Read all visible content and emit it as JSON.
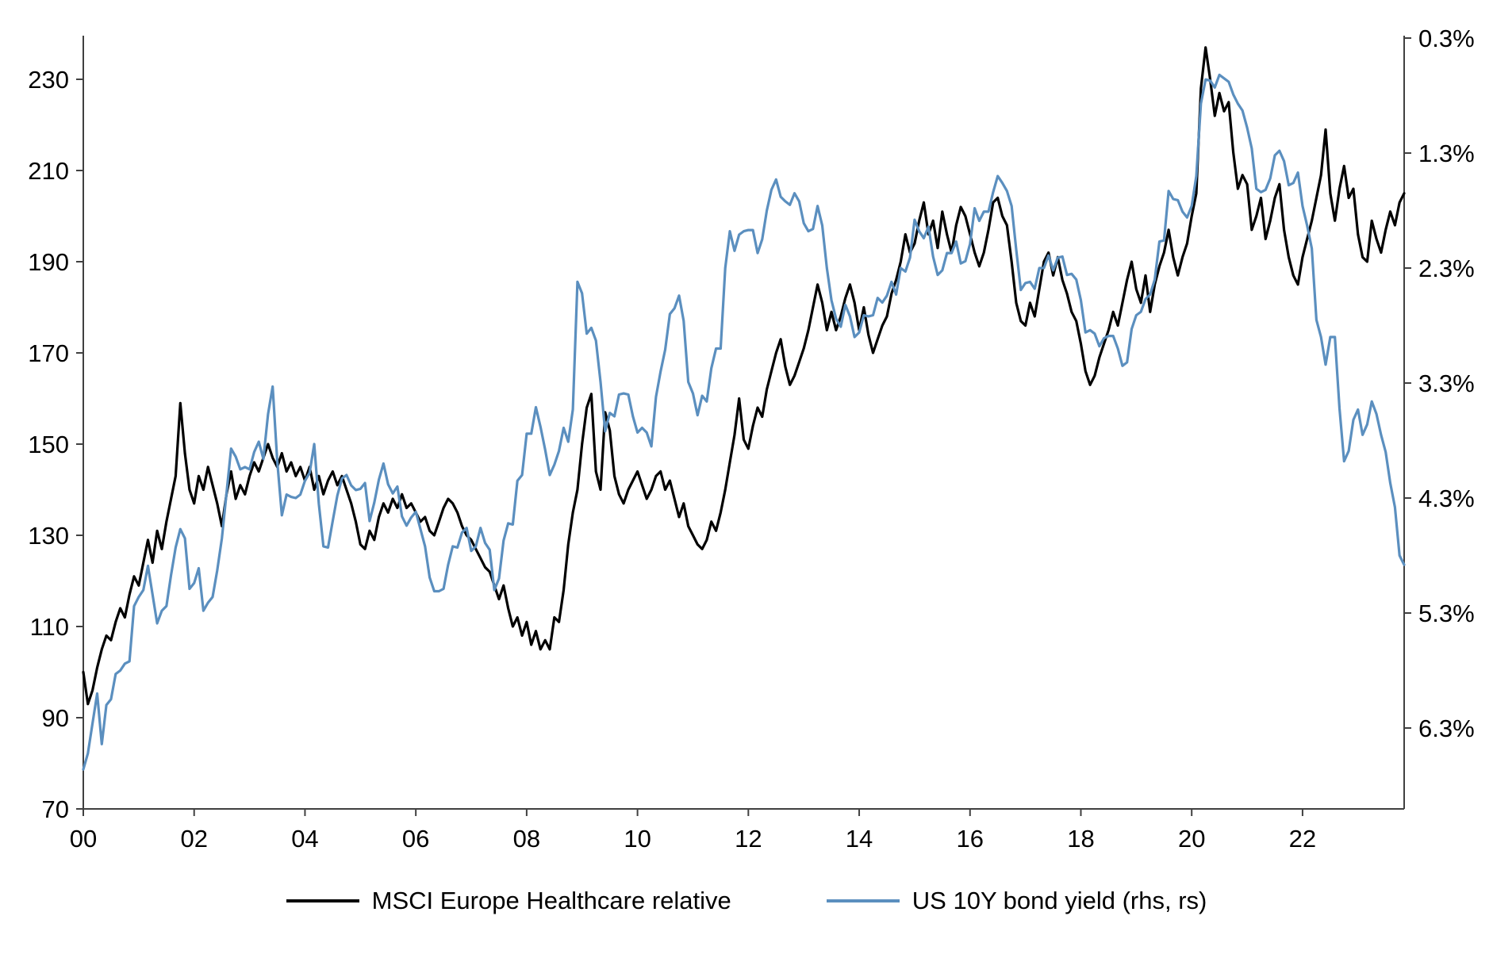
{
  "chart_data": {
    "type": "line",
    "title": "",
    "grid": false,
    "legend_position": "bottom",
    "x_axis": {
      "start_year": 2000,
      "points_per_year": 12,
      "tick_years": [
        2000,
        2002,
        2004,
        2006,
        2008,
        2010,
        2012,
        2014,
        2016,
        2018,
        2020,
        2022
      ],
      "tick_labels": [
        "00",
        "02",
        "04",
        "06",
        "08",
        "10",
        "12",
        "14",
        "16",
        "18",
        "20",
        "22"
      ]
    },
    "left_axis": {
      "min": 70,
      "max": 230,
      "ticks": [
        230,
        210,
        190,
        170,
        150,
        130,
        110,
        90,
        70
      ]
    },
    "right_axis": {
      "reversed": true,
      "ticks": [
        0.3,
        1.3,
        2.3,
        3.3,
        4.3,
        5.3,
        6.3
      ],
      "tick_labels": [
        "0.3%",
        "1.3%",
        "2.3%",
        "3.3%",
        "4.3%",
        "5.3%",
        "6.3%"
      ]
    },
    "series": [
      {
        "name": "MSCI Europe Healthcare relative",
        "axis": "left",
        "color": "#000000",
        "values": [
          100,
          93,
          96,
          101,
          105,
          108,
          107,
          111,
          114,
          112,
          117,
          121,
          119,
          124,
          129,
          124,
          131,
          127,
          133,
          138,
          143,
          159,
          148,
          140,
          137,
          143,
          140,
          145,
          141,
          137,
          132,
          139,
          144,
          138,
          141,
          139,
          143,
          146,
          144,
          147,
          150,
          147,
          145,
          148,
          144,
          146,
          143,
          145,
          142,
          145,
          140,
          143,
          139,
          142,
          144,
          141,
          143,
          140,
          137,
          133,
          128,
          127,
          131,
          129,
          134,
          137,
          135,
          138,
          136,
          139,
          136,
          137,
          135,
          133,
          134,
          131,
          130,
          133,
          136,
          138,
          137,
          135,
          132,
          130,
          129,
          127,
          125,
          123,
          122,
          119,
          116,
          119,
          114,
          110,
          112,
          108,
          111,
          106,
          109,
          105,
          107,
          105,
          112,
          111,
          118,
          128,
          135,
          140,
          150,
          158,
          161,
          144,
          140,
          157,
          153,
          143,
          139,
          137,
          140,
          142,
          144,
          141,
          138,
          140,
          143,
          144,
          140,
          142,
          138,
          134,
          137,
          132,
          130,
          128,
          127,
          129,
          133,
          131,
          135,
          140,
          146,
          152,
          160,
          151,
          149,
          154,
          158,
          156,
          162,
          166,
          170,
          173,
          167,
          163,
          165,
          168,
          171,
          175,
          180,
          185,
          181,
          175,
          179,
          175,
          178,
          182,
          185,
          181,
          175,
          180,
          174,
          170,
          173,
          176,
          178,
          183,
          186,
          190,
          196,
          192,
          194,
          199,
          203,
          196,
          199,
          193,
          201,
          196,
          192,
          198,
          202,
          200,
          196,
          192,
          189,
          192,
          197,
          203,
          204,
          200,
          198,
          190,
          181,
          177,
          176,
          181,
          178,
          184,
          190,
          192,
          187,
          191,
          186,
          183,
          179,
          177,
          172,
          166,
          163,
          165,
          169,
          172,
          175,
          179,
          176,
          181,
          186,
          190,
          184,
          181,
          187,
          179,
          185,
          189,
          192,
          197,
          191,
          187,
          191,
          194,
          200,
          205,
          228,
          237,
          230,
          222,
          227,
          223,
          225,
          214,
          206,
          209,
          207,
          197,
          200,
          204,
          195,
          199,
          204,
          207,
          197,
          191,
          187,
          185,
          191,
          195,
          199,
          204,
          209,
          219,
          205,
          199,
          206,
          211,
          204,
          206,
          196,
          191,
          190,
          199,
          195,
          192,
          197,
          201,
          198,
          203,
          205
        ]
      },
      {
        "name": "US 10Y bond yield (rhs, rs)",
        "axis": "right",
        "color": "#5b8fbf",
        "values": [
          6.66,
          6.52,
          6.26,
          6.0,
          6.44,
          6.1,
          6.05,
          5.83,
          5.8,
          5.74,
          5.72,
          5.24,
          5.16,
          5.1,
          4.89,
          5.14,
          5.39,
          5.28,
          5.24,
          4.97,
          4.73,
          4.57,
          4.65,
          5.09,
          5.04,
          4.91,
          5.28,
          5.21,
          5.16,
          4.93,
          4.65,
          4.26,
          3.87,
          3.94,
          4.05,
          4.03,
          4.05,
          3.9,
          3.81,
          3.96,
          3.57,
          3.33,
          3.98,
          4.45,
          4.27,
          4.29,
          4.3,
          4.27,
          4.15,
          4.08,
          3.83,
          4.35,
          4.72,
          4.73,
          4.5,
          4.28,
          4.13,
          4.1,
          4.19,
          4.23,
          4.22,
          4.17,
          4.5,
          4.34,
          4.14,
          4.0,
          4.18,
          4.26,
          4.2,
          4.46,
          4.54,
          4.47,
          4.42,
          4.57,
          4.72,
          4.99,
          5.11,
          5.11,
          5.09,
          4.88,
          4.72,
          4.73,
          4.6,
          4.56,
          4.76,
          4.72,
          4.56,
          4.69,
          4.75,
          5.1,
          5.0,
          4.67,
          4.52,
          4.53,
          4.15,
          4.1,
          3.74,
          3.74,
          3.51,
          3.68,
          3.88,
          4.1,
          4.01,
          3.89,
          3.69,
          3.81,
          3.53,
          2.42,
          2.52,
          2.87,
          2.82,
          2.93,
          3.29,
          3.72,
          3.56,
          3.59,
          3.4,
          3.39,
          3.4,
          3.59,
          3.73,
          3.69,
          3.73,
          3.85,
          3.42,
          3.2,
          3.01,
          2.7,
          2.65,
          2.54,
          2.76,
          3.29,
          3.39,
          3.58,
          3.41,
          3.46,
          3.17,
          3.0,
          3.0,
          2.3,
          1.98,
          2.15,
          2.01,
          1.98,
          1.97,
          1.97,
          2.17,
          2.05,
          1.8,
          1.62,
          1.53,
          1.68,
          1.72,
          1.75,
          1.65,
          1.72,
          1.91,
          1.98,
          1.96,
          1.76,
          1.93,
          2.3,
          2.58,
          2.74,
          2.81,
          2.62,
          2.72,
          2.9,
          2.86,
          2.71,
          2.72,
          2.71,
          2.56,
          2.6,
          2.54,
          2.42,
          2.53,
          2.3,
          2.33,
          2.21,
          1.88,
          1.98,
          2.04,
          1.94,
          2.2,
          2.36,
          2.32,
          2.17,
          2.17,
          2.07,
          2.26,
          2.24,
          2.09,
          1.78,
          1.89,
          1.81,
          1.81,
          1.64,
          1.5,
          1.56,
          1.63,
          1.76,
          2.14,
          2.49,
          2.43,
          2.42,
          2.48,
          2.3,
          2.3,
          2.19,
          2.32,
          2.21,
          2.2,
          2.36,
          2.35,
          2.4,
          2.58,
          2.86,
          2.84,
          2.87,
          2.98,
          2.91,
          2.89,
          2.89,
          3.0,
          3.15,
          3.12,
          2.83,
          2.71,
          2.68,
          2.57,
          2.53,
          2.4,
          2.07,
          2.06,
          1.63,
          1.7,
          1.71,
          1.81,
          1.86,
          1.76,
          1.5,
          0.87,
          0.66,
          0.67,
          0.73,
          0.62,
          0.65,
          0.68,
          0.79,
          0.87,
          0.93,
          1.08,
          1.26,
          1.61,
          1.64,
          1.62,
          1.52,
          1.32,
          1.28,
          1.37,
          1.58,
          1.56,
          1.47,
          1.76,
          1.93,
          2.13,
          2.75,
          2.9,
          3.14,
          2.9,
          2.9,
          3.52,
          3.98,
          3.89,
          3.62,
          3.53,
          3.75,
          3.66,
          3.46,
          3.57,
          3.75,
          3.9,
          4.17,
          4.38,
          4.8,
          4.88
        ]
      }
    ]
  },
  "legend": {
    "items": [
      {
        "label": "MSCI Europe Healthcare relative",
        "color": "#000000"
      },
      {
        "label": "US 10Y bond yield (rhs, rs)",
        "color": "#5b8fbf"
      }
    ]
  },
  "colors": {
    "axis": "#404040",
    "tick_text": "#000000",
    "background": "#ffffff"
  }
}
